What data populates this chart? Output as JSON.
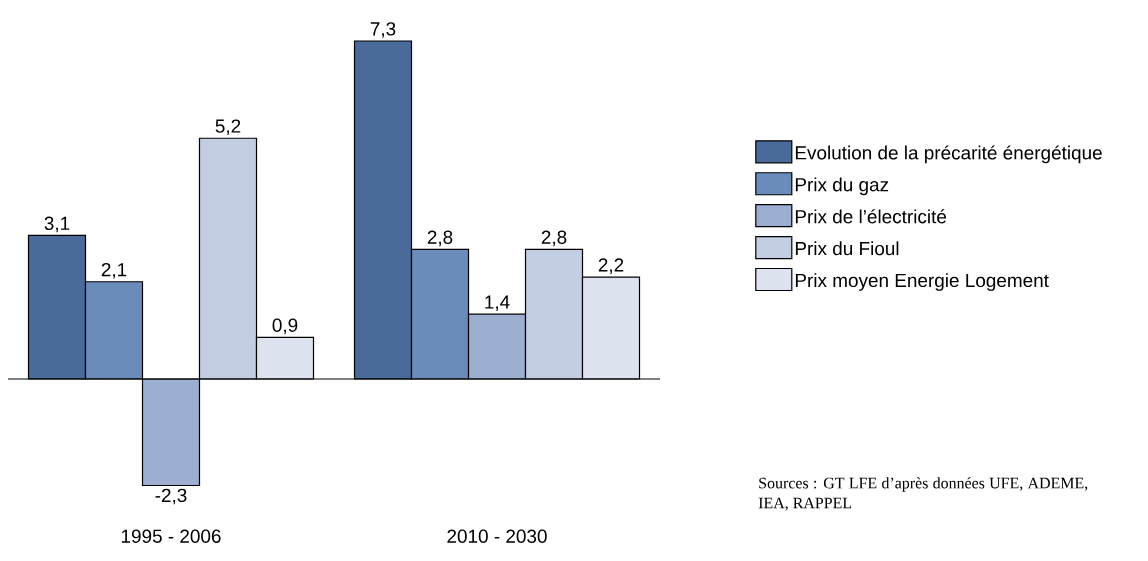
{
  "chart_data": {
    "type": "bar",
    "categories": [
      "1995 - 2006",
      "2010 - 2030"
    ],
    "series": [
      {
        "name": "Evolution de la précarité énergétique",
        "color": "#4a6a9a",
        "values": [
          3.1,
          7.3
        ],
        "value_labels": [
          "3,1",
          "7,3"
        ]
      },
      {
        "name": "Prix du gaz",
        "color": "#6b8cbb",
        "values": [
          2.1,
          2.8
        ],
        "value_labels": [
          "2,1",
          "2,8"
        ]
      },
      {
        "name": "Prix de l’électricité",
        "color": "#9cafd0",
        "values": [
          -2.3,
          1.4
        ],
        "value_labels": [
          "-2,3",
          "1,4"
        ]
      },
      {
        "name": "Prix du Fioul",
        "color": "#c3cee2",
        "values": [
          5.2,
          2.8
        ],
        "value_labels": [
          "5,2",
          "2,8"
        ]
      },
      {
        "name": "Prix moyen Energie Logement",
        "color": "#dde3ee",
        "values": [
          0.9,
          2.2
        ],
        "value_labels": [
          "0,9",
          "2,2"
        ]
      }
    ],
    "legend": "right",
    "annotations": [
      "Sources : GT LFE d’après données UFE, ADEME, IEA, RAPPEL"
    ]
  }
}
